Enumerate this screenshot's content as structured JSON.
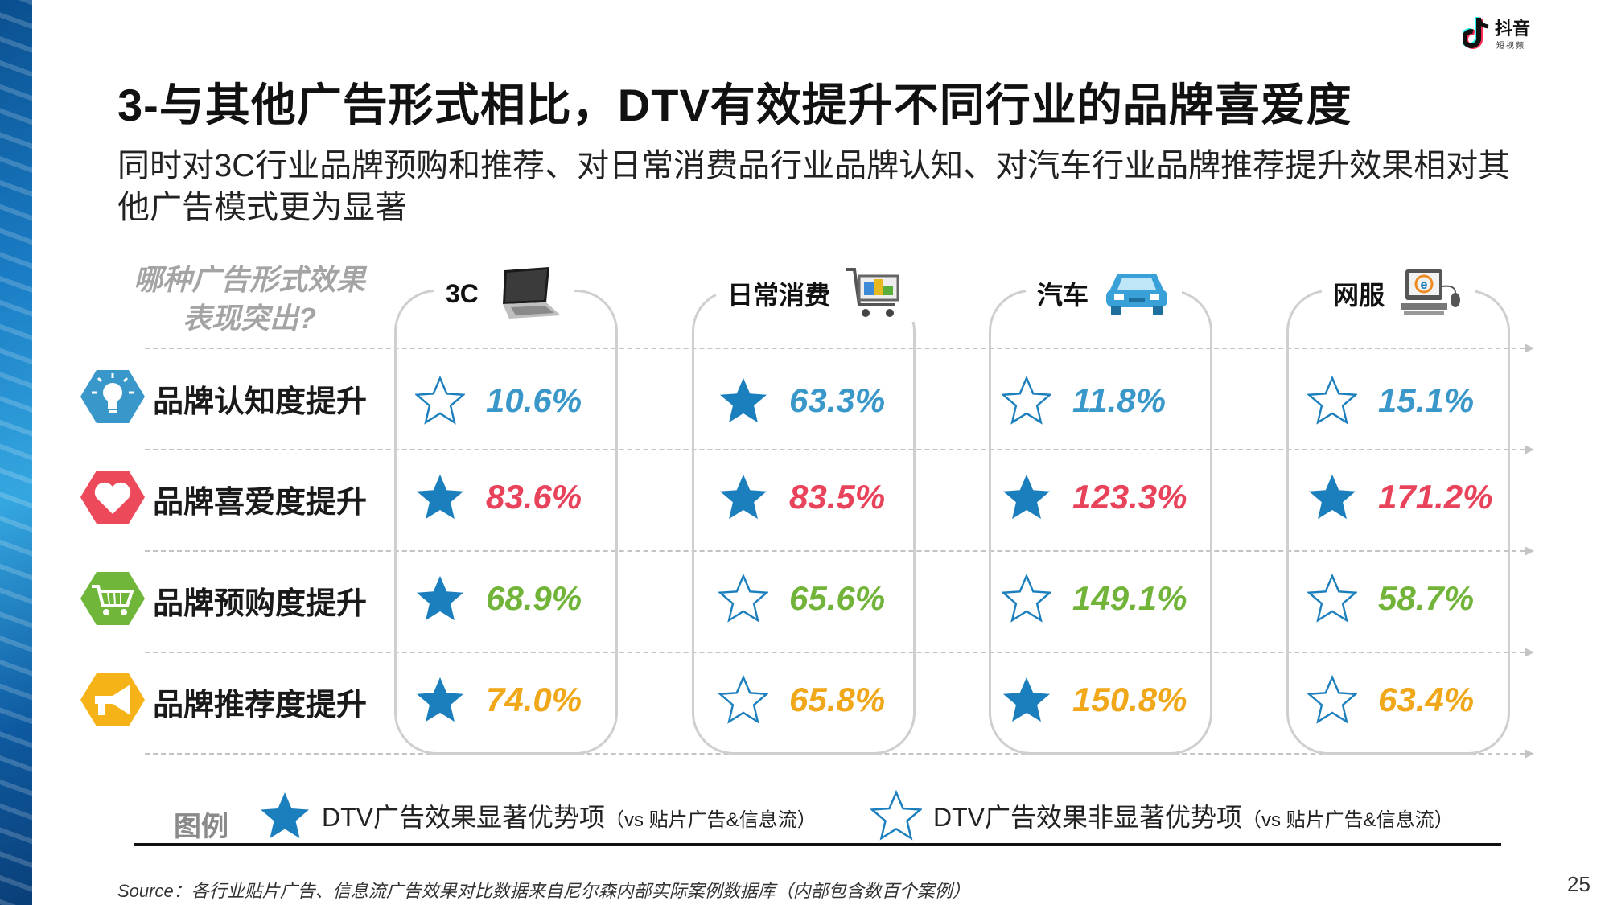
{
  "brand": {
    "logo_text": "抖音",
    "logo_sub": "短视频"
  },
  "title": "3-与其他广告形式相比，DTV有效提升不同行业的品牌喜爱度",
  "subtitle": "同时对3C行业品牌预购和推荐、对日常消费品行业品牌认知、对汽车行业品牌推荐提升效果相对其他广告模式更为显著",
  "question": {
    "line1": "哪种广告形式效果",
    "line2": "表现突出?"
  },
  "columns": [
    {
      "label": "3C",
      "icon": "laptop-icon"
    },
    {
      "label": "日常消费",
      "icon": "shopping-cart-icon"
    },
    {
      "label": "汽车",
      "icon": "car-icon"
    },
    {
      "label": "网服",
      "icon": "computer-icon"
    }
  ],
  "rows": [
    {
      "label": "品牌认知度提升",
      "icon": "lightbulb-icon",
      "icon_color": "#3a97c9",
      "value_color": "#3a97c9",
      "cells": [
        {
          "value": "10.6%",
          "significant": false
        },
        {
          "value": "63.3%",
          "significant": true
        },
        {
          "value": "11.8%",
          "significant": false
        },
        {
          "value": "15.1%",
          "significant": false
        }
      ]
    },
    {
      "label": "品牌喜爱度提升",
      "icon": "heart-icon",
      "icon_color": "#ec4a5a",
      "value_color": "#e8435a",
      "cells": [
        {
          "value": "83.6%",
          "significant": true
        },
        {
          "value": "83.5%",
          "significant": true
        },
        {
          "value": "123.3%",
          "significant": true
        },
        {
          "value": "171.2%",
          "significant": true
        }
      ]
    },
    {
      "label": "品牌预购度提升",
      "icon": "cart-icon",
      "icon_color": "#6fb63a",
      "value_color": "#72b43a",
      "cells": [
        {
          "value": "68.9%",
          "significant": true
        },
        {
          "value": "65.6%",
          "significant": false
        },
        {
          "value": "149.1%",
          "significant": false
        },
        {
          "value": "58.7%",
          "significant": false
        }
      ]
    },
    {
      "label": "品牌推荐度提升",
      "icon": "megaphone-icon",
      "icon_color": "#f6b318",
      "value_color": "#f0a81a",
      "cells": [
        {
          "value": "74.0%",
          "significant": true
        },
        {
          "value": "65.8%",
          "significant": false
        },
        {
          "value": "150.8%",
          "significant": true
        },
        {
          "value": "63.4%",
          "significant": false
        }
      ]
    }
  ],
  "legend": {
    "title": "图例",
    "significant": {
      "text": "DTV广告效果显著优势项",
      "note": "（vs 贴片广告&信息流）"
    },
    "non_significant": {
      "text": "DTV广告效果非显著优势项",
      "note": "（vs 贴片广告&信息流）"
    }
  },
  "colors": {
    "star": "#1c7fbd"
  },
  "source": "Source：各行业贴片广告、信息流广告效果对比数据来自尼尔森内部实际案例数据库（内部包含数百个案例）",
  "page_number": "25"
}
